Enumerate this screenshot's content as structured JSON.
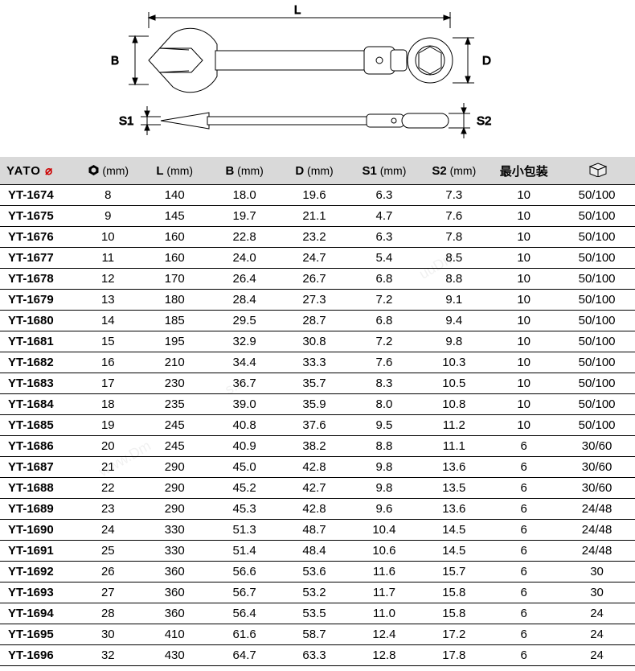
{
  "diagram": {
    "labels": {
      "L": "L",
      "B": "B",
      "D": "D",
      "S1": "S1",
      "S2": "S2"
    },
    "stroke": "#000000",
    "fill": "#ffffff",
    "line_width": 1
  },
  "table": {
    "header_bg": "#d9d9d9",
    "border_color": "#000000",
    "font_size": 15,
    "col_widths_pct": [
      12,
      10,
      11,
      11,
      11,
      11,
      11,
      11,
      12
    ],
    "columns": [
      {
        "key": "model",
        "label_html": "brand"
      },
      {
        "key": "O",
        "label": "⬢",
        "unit": "(mm)"
      },
      {
        "key": "L",
        "label": "L",
        "unit": "(mm)"
      },
      {
        "key": "B",
        "label": "B",
        "unit": "(mm)"
      },
      {
        "key": "D",
        "label": "D",
        "unit": "(mm)"
      },
      {
        "key": "S1",
        "label": "S1",
        "unit": "(mm)"
      },
      {
        "key": "S2",
        "label": "S2",
        "unit": "(mm)"
      },
      {
        "key": "minpack",
        "label": "最小包装",
        "unit": ""
      },
      {
        "key": "box",
        "label_html": "box",
        "unit": ""
      }
    ],
    "brand": "YATO",
    "rows": [
      {
        "model": "YT-1674",
        "O": "8",
        "L": "140",
        "B": "18.0",
        "D": "19.6",
        "S1": "6.3",
        "S2": "7.3",
        "minpack": "10",
        "box": "50/100"
      },
      {
        "model": "YT-1675",
        "O": "9",
        "L": "145",
        "B": "19.7",
        "D": "21.1",
        "S1": "4.7",
        "S2": "7.6",
        "minpack": "10",
        "box": "50/100"
      },
      {
        "model": "YT-1676",
        "O": "10",
        "L": "160",
        "B": "22.8",
        "D": "23.2",
        "S1": "6.3",
        "S2": "7.8",
        "minpack": "10",
        "box": "50/100"
      },
      {
        "model": "YT-1677",
        "O": "11",
        "L": "160",
        "B": "24.0",
        "D": "24.7",
        "S1": "5.4",
        "S2": "8.5",
        "minpack": "10",
        "box": "50/100"
      },
      {
        "model": "YT-1678",
        "O": "12",
        "L": "170",
        "B": "26.4",
        "D": "26.7",
        "S1": "6.8",
        "S2": "8.8",
        "minpack": "10",
        "box": "50/100"
      },
      {
        "model": "YT-1679",
        "O": "13",
        "L": "180",
        "B": "28.4",
        "D": "27.3",
        "S1": "7.2",
        "S2": "9.1",
        "minpack": "10",
        "box": "50/100"
      },
      {
        "model": "YT-1680",
        "O": "14",
        "L": "185",
        "B": "29.5",
        "D": "28.7",
        "S1": "6.8",
        "S2": "9.4",
        "minpack": "10",
        "box": "50/100"
      },
      {
        "model": "YT-1681",
        "O": "15",
        "L": "195",
        "B": "32.9",
        "D": "30.8",
        "S1": "7.2",
        "S2": "9.8",
        "minpack": "10",
        "box": "50/100"
      },
      {
        "model": "YT-1682",
        "O": "16",
        "L": "210",
        "B": "34.4",
        "D": "33.3",
        "S1": "7.6",
        "S2": "10.3",
        "minpack": "10",
        "box": "50/100"
      },
      {
        "model": "YT-1683",
        "O": "17",
        "L": "230",
        "B": "36.7",
        "D": "35.7",
        "S1": "8.3",
        "S2": "10.5",
        "minpack": "10",
        "box": "50/100"
      },
      {
        "model": "YT-1684",
        "O": "18",
        "L": "235",
        "B": "39.0",
        "D": "35.9",
        "S1": "8.0",
        "S2": "10.8",
        "minpack": "10",
        "box": "50/100"
      },
      {
        "model": "YT-1685",
        "O": "19",
        "L": "245",
        "B": "40.8",
        "D": "37.6",
        "S1": "9.5",
        "S2": "11.2",
        "minpack": "10",
        "box": "50/100"
      },
      {
        "model": "YT-1686",
        "O": "20",
        "L": "245",
        "B": "40.9",
        "D": "38.2",
        "S1": "8.8",
        "S2": "11.1",
        "minpack": "6",
        "box": "30/60"
      },
      {
        "model": "YT-1687",
        "O": "21",
        "L": "290",
        "B": "45.0",
        "D": "42.8",
        "S1": "9.8",
        "S2": "13.6",
        "minpack": "6",
        "box": "30/60"
      },
      {
        "model": "YT-1688",
        "O": "22",
        "L": "290",
        "B": "45.2",
        "D": "42.7",
        "S1": "9.8",
        "S2": "13.5",
        "minpack": "6",
        "box": "30/60"
      },
      {
        "model": "YT-1689",
        "O": "23",
        "L": "290",
        "B": "45.3",
        "D": "42.8",
        "S1": "9.6",
        "S2": "13.6",
        "minpack": "6",
        "box": "24/48"
      },
      {
        "model": "YT-1690",
        "O": "24",
        "L": "330",
        "B": "51.3",
        "D": "48.7",
        "S1": "10.4",
        "S2": "14.5",
        "minpack": "6",
        "box": "24/48"
      },
      {
        "model": "YT-1691",
        "O": "25",
        "L": "330",
        "B": "51.4",
        "D": "48.4",
        "S1": "10.6",
        "S2": "14.5",
        "minpack": "6",
        "box": "24/48"
      },
      {
        "model": "YT-1692",
        "O": "26",
        "L": "360",
        "B": "56.6",
        "D": "53.6",
        "S1": "11.6",
        "S2": "15.7",
        "minpack": "6",
        "box": "30"
      },
      {
        "model": "YT-1693",
        "O": "27",
        "L": "360",
        "B": "56.7",
        "D": "53.2",
        "S1": "11.7",
        "S2": "15.8",
        "minpack": "6",
        "box": "30"
      },
      {
        "model": "YT-1694",
        "O": "28",
        "L": "360",
        "B": "56.4",
        "D": "53.5",
        "S1": "11.0",
        "S2": "15.8",
        "minpack": "6",
        "box": "24"
      },
      {
        "model": "YT-1695",
        "O": "30",
        "L": "410",
        "B": "61.6",
        "D": "58.7",
        "S1": "12.4",
        "S2": "17.2",
        "minpack": "6",
        "box": "24"
      },
      {
        "model": "YT-1696",
        "O": "32",
        "L": "430",
        "B": "64.7",
        "D": "63.3",
        "S1": "12.8",
        "S2": "17.8",
        "minpack": "6",
        "box": "24"
      }
    ]
  }
}
